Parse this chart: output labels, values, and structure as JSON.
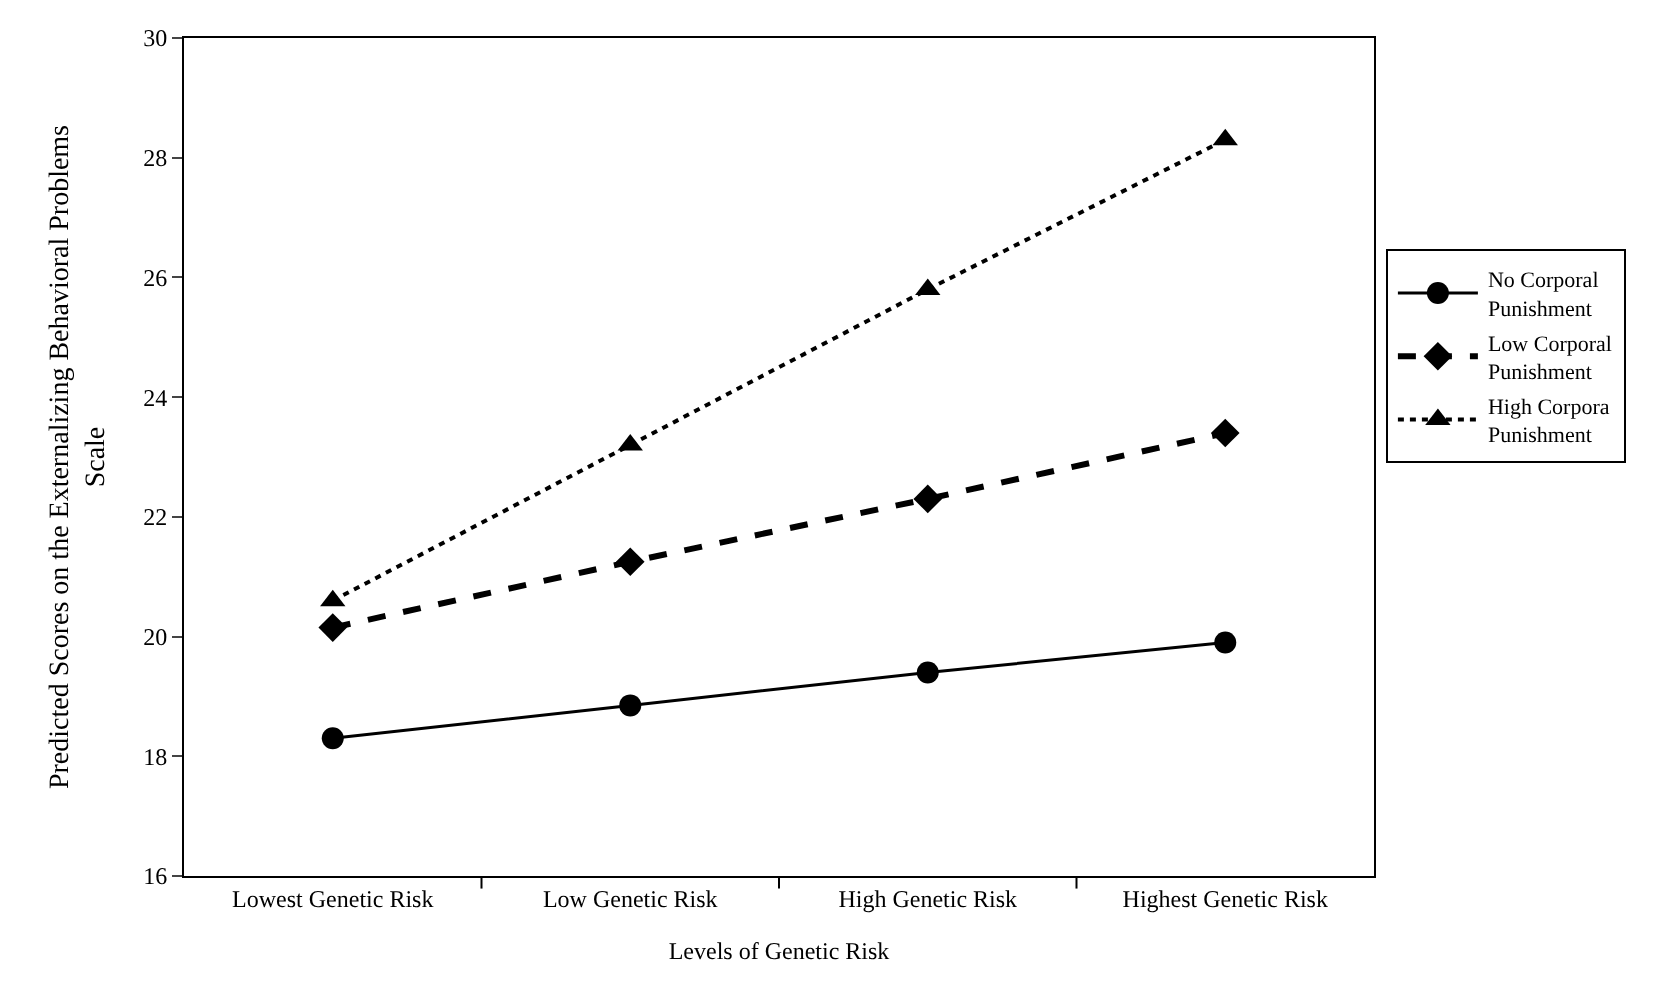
{
  "chart_data": {
    "type": "line",
    "xlabel": "Levels of Genetic Risk",
    "ylabel": "Predicted Scores on the Externalizing Behavioral Problems Scale",
    "categories": [
      "Lowest Genetic Risk",
      "Low Genetic Risk",
      "High Genetic Risk",
      "Highest Genetic Risk"
    ],
    "series": [
      {
        "name": "No Corporal Punishment",
        "color": "#000000",
        "values": [
          18.3,
          18.85,
          19.4,
          19.9
        ],
        "marker": "circle",
        "line_style": "solid"
      },
      {
        "name": "Low Corporal Punishment",
        "color": "#000000",
        "values": [
          20.15,
          21.25,
          22.3,
          23.4
        ],
        "marker": "diamond",
        "line_style": "dashed"
      },
      {
        "name": "High Corpora Punishment",
        "color": "#000000",
        "values": [
          20.6,
          23.2,
          25.8,
          28.3
        ],
        "marker": "triangle",
        "line_style": "dotted"
      }
    ],
    "ylim": [
      16,
      30
    ],
    "yticks": [
      16,
      18,
      20,
      22,
      24,
      26,
      28,
      30
    ],
    "legend": "right"
  }
}
